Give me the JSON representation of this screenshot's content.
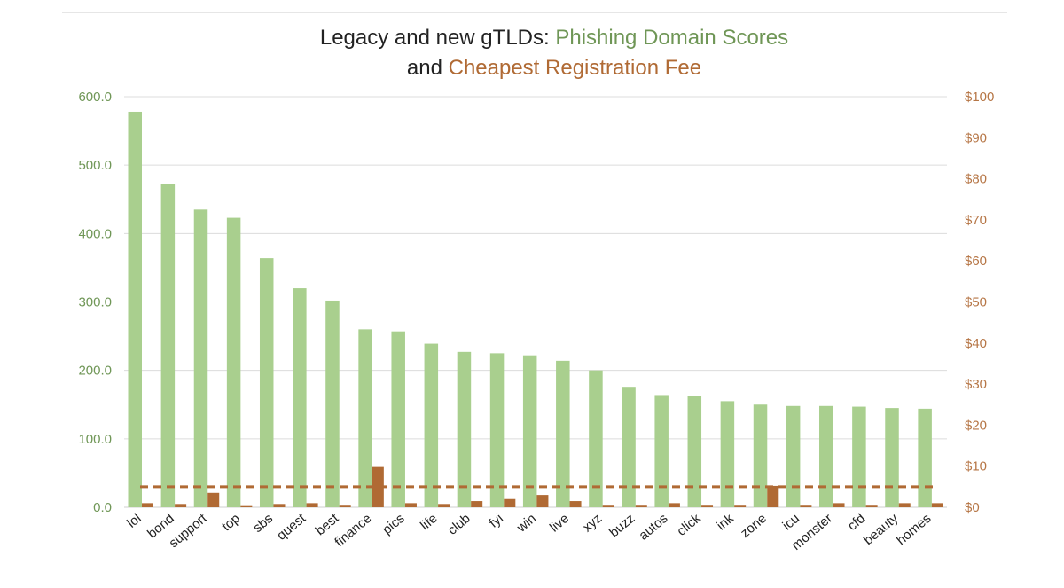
{
  "chart_data": {
    "type": "bar",
    "title": {
      "line1_prefix": "Legacy and new gTLDs: ",
      "line1_highlight": "Phishing Domain Scores",
      "line2_prefix": "and ",
      "line2_highlight": "Cheapest Registration Fee"
    },
    "categories": [
      "lol",
      "bond",
      "support",
      "top",
      "sbs",
      "quest",
      "best",
      "finance",
      "pics",
      "life",
      "club",
      "fyi",
      "win",
      "live",
      "xyz",
      "buzz",
      "autos",
      "click",
      "ink",
      "zone",
      "icu",
      "monster",
      "cfd",
      "beauty",
      "homes"
    ],
    "series": [
      {
        "name": "Phishing Domain Scores",
        "axis": "left",
        "color": "#a9cf8e",
        "values": [
          578,
          473,
          435,
          423,
          364,
          320,
          302,
          260,
          257,
          239,
          227,
          225,
          222,
          214,
          200,
          176,
          164,
          163,
          155,
          150,
          148,
          148,
          147,
          145,
          144
        ]
      },
      {
        "name": "Cheapest Registration Fee",
        "axis": "right",
        "color": "#b06a34",
        "values": [
          1.0,
          0.8,
          3.5,
          0.5,
          0.8,
          1.0,
          0.6,
          9.8,
          1.0,
          0.8,
          1.5,
          2.0,
          3.0,
          1.5,
          0.6,
          0.6,
          1.0,
          0.6,
          0.6,
          5.2,
          0.6,
          1.0,
          0.6,
          1.0,
          1.0
        ]
      }
    ],
    "reference_line": {
      "axis": "right",
      "value": 5,
      "style": "dashed",
      "color": "#b06a34"
    },
    "y_left": {
      "ylim": [
        0,
        600
      ],
      "ticks": [
        "0.0",
        "100.0",
        "200.0",
        "300.0",
        "400.0",
        "500.0",
        "600.0"
      ],
      "color": "#6f9656"
    },
    "y_right": {
      "ylim": [
        0,
        100
      ],
      "ticks": [
        "$0",
        "$10",
        "$20",
        "$30",
        "$40",
        "$50",
        "$60",
        "$70",
        "$80",
        "$90",
        "$100"
      ],
      "color": "#b67646"
    },
    "grid": true,
    "legend": "none"
  }
}
